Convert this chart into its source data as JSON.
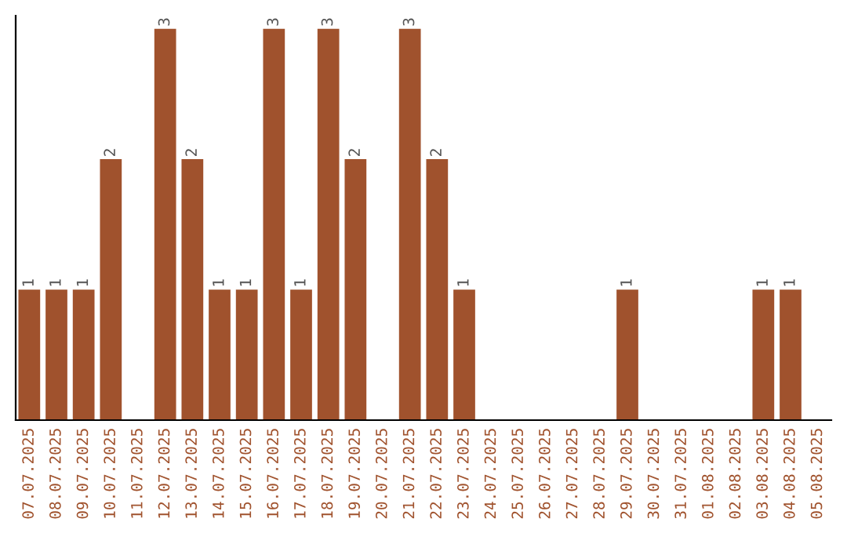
{
  "chart_data": {
    "type": "bar",
    "categories": [
      "07.07.2025",
      "08.07.2025",
      "09.07.2025",
      "10.07.2025",
      "11.07.2025",
      "12.07.2025",
      "13.07.2025",
      "14.07.2025",
      "15.07.2025",
      "16.07.2025",
      "17.07.2025",
      "18.07.2025",
      "19.07.2025",
      "20.07.2025",
      "21.07.2025",
      "22.07.2025",
      "23.07.2025",
      "24.07.2025",
      "25.07.2025",
      "26.07.2025",
      "27.07.2025",
      "28.07.2025",
      "29.07.2025",
      "30.07.2025",
      "31.07.2025",
      "01.08.2025",
      "02.08.2025",
      "03.08.2025",
      "04.08.2025",
      "05.08.2025"
    ],
    "values": [
      1,
      1,
      1,
      2,
      0,
      3,
      2,
      1,
      1,
      3,
      1,
      3,
      2,
      0,
      3,
      2,
      1,
      0,
      0,
      0,
      0,
      0,
      1,
      0,
      0,
      0,
      0,
      1,
      1,
      0
    ],
    "value_labels": [
      "1",
      "1",
      "1",
      "2",
      null,
      "3",
      "2",
      "1",
      "1",
      "3",
      "1",
      "3",
      "2",
      null,
      "3",
      "2",
      "1",
      null,
      null,
      null,
      null,
      null,
      "1",
      null,
      null,
      null,
      null,
      "1",
      "1",
      null
    ],
    "color": "#a0522d",
    "ylim": [
      0,
      3.1
    ],
    "tick_labels": "x",
    "grid": false,
    "legend": false
  }
}
